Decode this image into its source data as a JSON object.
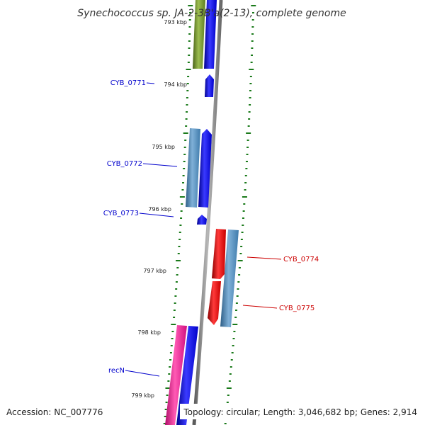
{
  "title": "Synechococcus sp. JA-2-3B'a(2-13), complete genome",
  "accession": "Accession: NC_007776",
  "topology": "Topology: circular; Length: 3,046,682 bp; Genes: 2,914",
  "kbp_labels": [
    "793 kbp",
    "794 kbp",
    "795 kbp",
    "796 kbp",
    "797 kbp",
    "798 kbp",
    "799 kbp"
  ],
  "genes": [
    {
      "name": "CYB_0771",
      "strand": "reverse",
      "color": "#0000cc"
    },
    {
      "name": "CYB_0772",
      "strand": "reverse",
      "color": "#0000cc"
    },
    {
      "name": "CYB_0773",
      "strand": "reverse",
      "color": "#0000cc"
    },
    {
      "name": "CYB_0774",
      "strand": "forward",
      "color": "#cc0000"
    },
    {
      "name": "CYB_0775",
      "strand": "forward",
      "color": "#cc0000"
    },
    {
      "name": "recN",
      "strand": "reverse",
      "color": "#0000cc"
    }
  ],
  "colors": {
    "cds_reverse": "#0000ff",
    "cds_forward": "#ff0000",
    "gene_reverse": "#4682b4",
    "gene_forward": "#4682b4",
    "gene_green": "#6b8e23",
    "gene_pink": "#ff1493",
    "backbone": "#808080",
    "tick": "#1a7a1a"
  }
}
